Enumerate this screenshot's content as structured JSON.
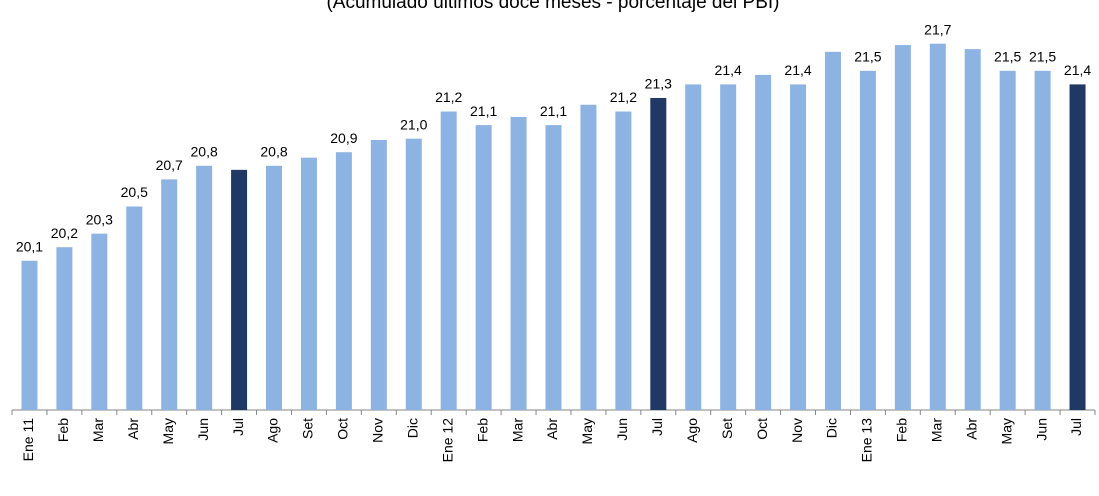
{
  "chart_data": {
    "type": "bar",
    "subtitle": "(Acumulado últimos doce meses - porcentaje del PBI)",
    "categories": [
      "Ene 11",
      "Feb",
      "Mar",
      "Abr",
      "May",
      "Jun",
      "Jul",
      "Ago",
      "Set",
      "Oct",
      "Nov",
      "Dic",
      "Ene 12",
      "Feb",
      "Mar",
      "Abr",
      "May",
      "Jun",
      "Jul",
      "Ago",
      "Set",
      "Oct",
      "Nov",
      "Dic",
      "Ene 13",
      "Feb",
      "Mar",
      "Abr",
      "May",
      "Jun",
      "Jul"
    ],
    "values": [
      20.1,
      20.2,
      20.3,
      20.5,
      20.7,
      20.8,
      20.77,
      20.8,
      20.86,
      20.9,
      20.99,
      21.0,
      21.2,
      21.1,
      21.16,
      21.1,
      21.25,
      21.2,
      21.3,
      21.4,
      21.4,
      21.47,
      21.4,
      21.64,
      21.5,
      21.69,
      21.7,
      21.66,
      21.5,
      21.5,
      21.4
    ],
    "value_labels": [
      "20,1",
      "20,2",
      "20,3",
      "20,5",
      "20,7",
      "20,8",
      null,
      "20,8",
      null,
      "20,9",
      null,
      "21,0",
      "21,2",
      "21,1",
      null,
      "21,1",
      null,
      "21,2",
      "21,3",
      null,
      "21,4",
      null,
      "21,4",
      null,
      "21,5",
      null,
      "21,7",
      null,
      "21,5",
      "21,5",
      "21,4"
    ],
    "colors": [
      "#8db3e2",
      "#8db3e2",
      "#8db3e2",
      "#8db3e2",
      "#8db3e2",
      "#8db3e2",
      "#1f3864",
      "#8db3e2",
      "#8db3e2",
      "#8db3e2",
      "#8db3e2",
      "#8db3e2",
      "#8db3e2",
      "#8db3e2",
      "#8db3e2",
      "#8db3e2",
      "#8db3e2",
      "#8db3e2",
      "#1f3864",
      "#8db3e2",
      "#8db3e2",
      "#8db3e2",
      "#8db3e2",
      "#8db3e2",
      "#8db3e2",
      "#8db3e2",
      "#8db3e2",
      "#8db3e2",
      "#8db3e2",
      "#8db3e2",
      "#1f3864"
    ],
    "ylim": [
      19,
      22
    ]
  }
}
